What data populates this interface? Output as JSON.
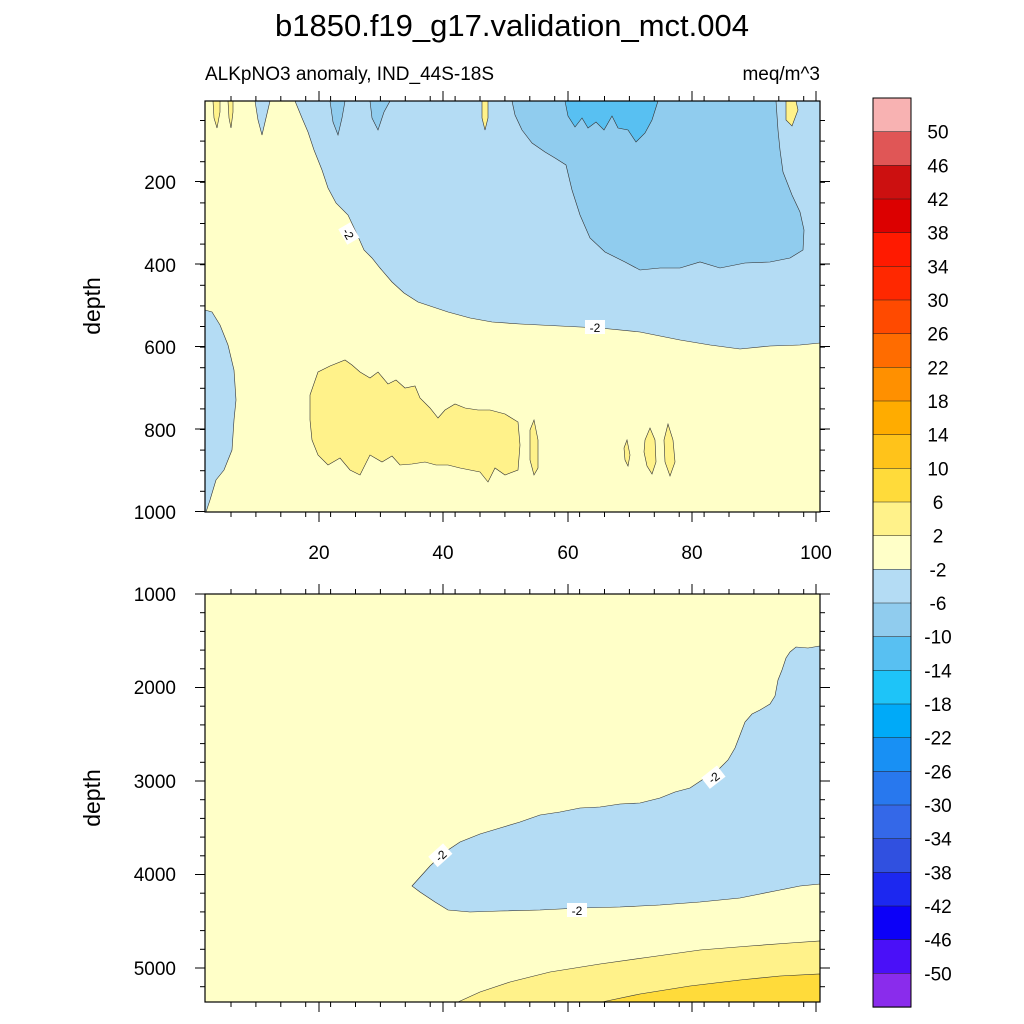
{
  "chart_data": {
    "type": "contour",
    "title": "b1850.f19_g17.validation_mct.004",
    "subtitle_left": "ALKpNO3 anomaly, IND_44S-18S",
    "subtitle_right": "meq/m^3",
    "colorbar": {
      "levels": [
        "50",
        "46",
        "42",
        "38",
        "34",
        "30",
        "26",
        "22",
        "18",
        "14",
        "10",
        "6",
        "2",
        "-2",
        "-6",
        "-10",
        "-14",
        "-18",
        "-22",
        "-26",
        "-30",
        "-34",
        "-38",
        "-42",
        "-46",
        "-50"
      ],
      "colors": {
        "c_above50": "#f8b2b2",
        "c46_50": "#e05656",
        "c42_46": "#cc1010",
        "c38_42": "#dc0000",
        "c34_38": "#ff1a00",
        "c30_34": "#ff2800",
        "c26_30": "#ff4a00",
        "c22_26": "#ff6c00",
        "c18_22": "#ff9000",
        "c14_18": "#ffac00",
        "c10_14": "#ffc31a",
        "c6_10": "#ffdb3a",
        "c2_6": "#fff28a",
        "c_m2_2": "#ffffc8",
        "c_m6_m2": "#b4dcf4",
        "c_m10_m6": "#90ccee",
        "c_m14_m10": "#58c0f2",
        "c_m18_m14": "#1ec4f8",
        "c_m22_m18": "#00aaf8",
        "c_m26_m22": "#1890f4",
        "c_m30_m26": "#2878ee",
        "c_m34_m30": "#3468e8",
        "c_m38_m34": "#3050e0",
        "c_m42_m38": "#1c28f0",
        "c_m46_m42": "#0c00f8",
        "c_m50_m46": "#4a10f8",
        "c_below_m50": "#8a2cec"
      }
    },
    "top_panel": {
      "ylabel": "depth",
      "yticks": [
        "200",
        "400",
        "600",
        "800",
        "1000"
      ],
      "xticks": [
        "20",
        "40",
        "60",
        "80",
        "100"
      ],
      "contour_labels": [
        "-2",
        "-2"
      ]
    },
    "bottom_panel": {
      "ylabel": "depth",
      "yticks": [
        "1000",
        "2000",
        "3000",
        "4000",
        "5000"
      ],
      "contour_labels": [
        "-2",
        "-2",
        "-2"
      ]
    }
  }
}
